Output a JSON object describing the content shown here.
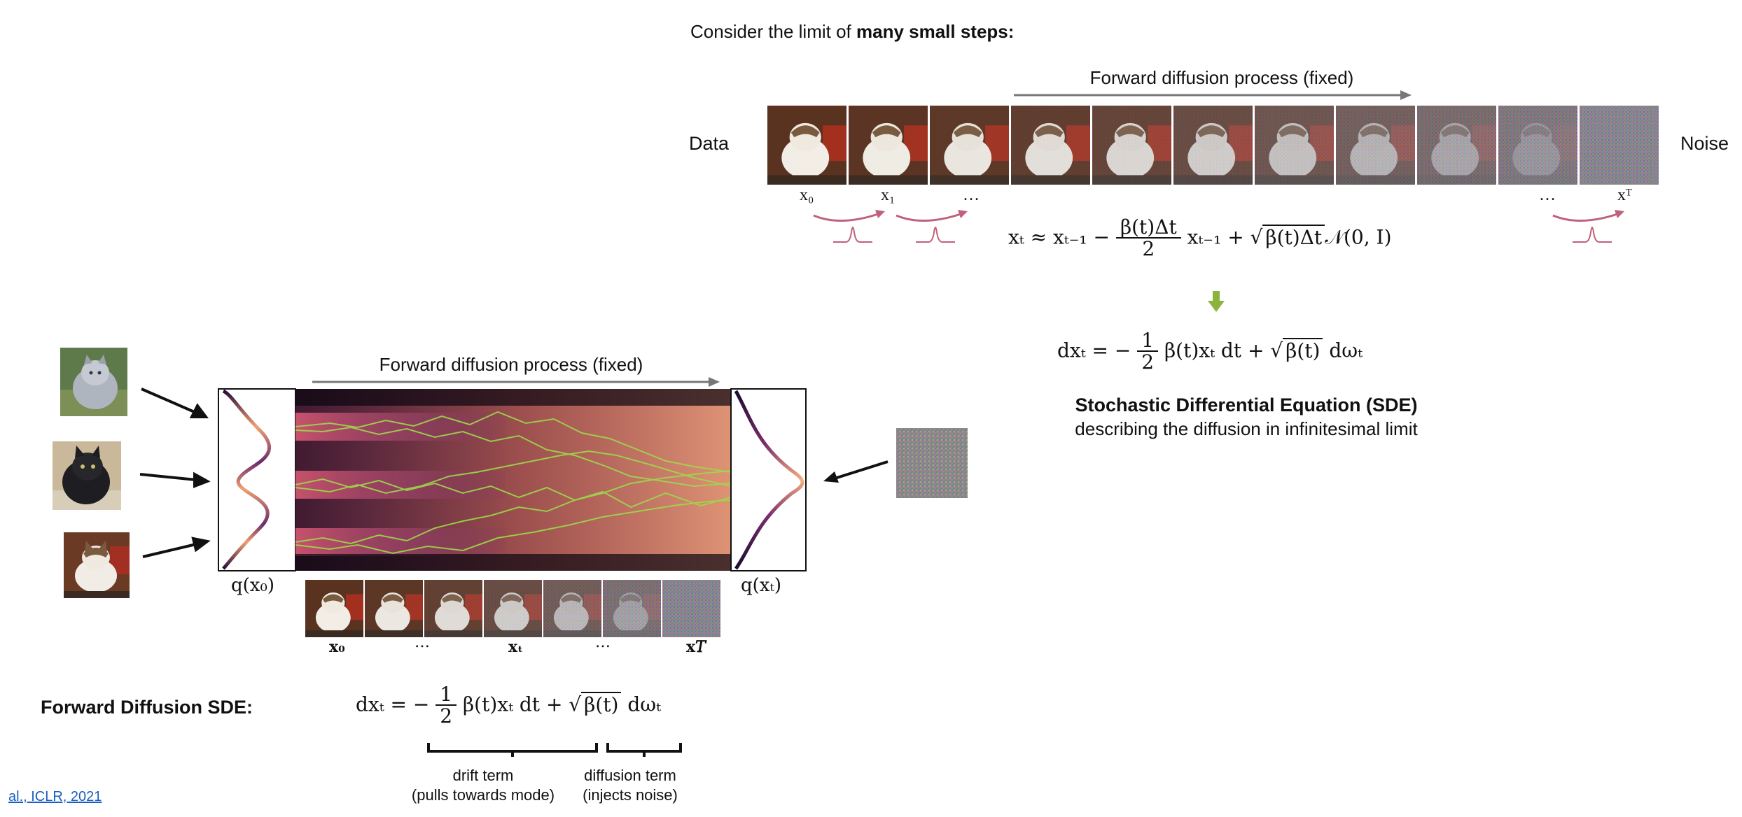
{
  "top": {
    "intro_prefix": "Consider the limit of ",
    "intro_bold": "many small steps:",
    "process_label": "Forward diffusion process (fixed)",
    "data_label": "Data",
    "noise_label": "Noise",
    "step_labels": [
      "x₀",
      "x₁",
      "…",
      "…",
      "xᵀ"
    ],
    "discrete_equation": {
      "lhs": "xₜ ≈ xₜ₋₁ −",
      "num": "β(t)Δt",
      "den": "2",
      "mid": "xₜ₋₁ +",
      "sqrt": "β(t)Δt",
      "tail": "𝒩(0, I)"
    },
    "sde_equation": {
      "lhs": "dxₜ = −",
      "num": "1",
      "den": "2",
      "mid": "β(t)xₜ dt +",
      "sqrt": "β(t)",
      "tail": "dωₜ"
    },
    "sde_title": "Stochastic Differential Equation (SDE)",
    "sde_subtitle": "describing the diffusion in infinitesimal limit",
    "down_arrow_color": "#8cb43c",
    "step_arrow_color": "#c0607a"
  },
  "left": {
    "process_label": "Forward diffusion process (fixed)",
    "q0_label": "q(x₀)",
    "qT_label": "q(xₜ)",
    "strip_labels": [
      "x₀",
      "…",
      "xₜ",
      "…",
      "xₜ"
    ],
    "strip_label_T": "x𝑇",
    "sde_label": "Forward Diffusion SDE:",
    "sde_equation": {
      "lhs": "dxₜ = −",
      "num": "1",
      "den": "2",
      "mid": "β(t)xₜ dt +",
      "sqrt": "β(t)",
      "tail": "dωₜ"
    },
    "drift_term": "drift term",
    "drift_note": "(pulls towards mode)",
    "diffusion_term": "diffusion term",
    "diffusion_note": "(injects noise)",
    "citation": "al., ICLR, 2021",
    "trajectory_color": "#9ed84a"
  }
}
